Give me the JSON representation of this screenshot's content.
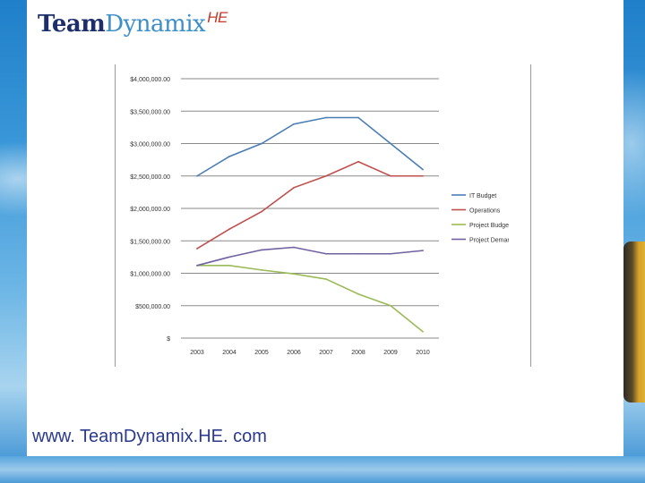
{
  "logo": {
    "part1": "Team",
    "part2": "Dynamix",
    "part3": "HE"
  },
  "footer": {
    "url": "www. TeamDynamix.HE. com"
  },
  "colors": {
    "it_budget": "#4a7eb5",
    "operations": "#c0504d",
    "project_budget": "#9bbb59",
    "project_demand": "#7060a0",
    "grid": "#8a8a8a"
  },
  "chart_data": {
    "type": "line",
    "title": "",
    "xlabel": "",
    "ylabel": "",
    "categories": [
      "2003",
      "2004",
      "2005",
      "2006",
      "2007",
      "2008",
      "2009",
      "2010"
    ],
    "ylim": [
      0,
      4000000
    ],
    "y_ticks": [
      {
        "value": 0,
        "label": "$"
      },
      {
        "value": 500000,
        "label": "$500,000.00"
      },
      {
        "value": 1000000,
        "label": "$1,000,000.00"
      },
      {
        "value": 1500000,
        "label": "$1,500,000.00"
      },
      {
        "value": 2000000,
        "label": "$2,000,000.00"
      },
      {
        "value": 2500000,
        "label": "$2,500,000.00"
      },
      {
        "value": 3000000,
        "label": "$3,000,000.00"
      },
      {
        "value": 3500000,
        "label": "$3,500,000.00"
      },
      {
        "value": 4000000,
        "label": "$4,000,000.00"
      }
    ],
    "grid": true,
    "legend_position": "right",
    "series": [
      {
        "name": "IT Budget",
        "color_key": "it_budget",
        "values": [
          2500000,
          2800000,
          3000000,
          3300000,
          3400000,
          3400000,
          3000000,
          2600000
        ]
      },
      {
        "name": "Operations",
        "color_key": "operations",
        "values": [
          1380000,
          1680000,
          1950000,
          2320000,
          2500000,
          2720000,
          2500000,
          2500000
        ]
      },
      {
        "name": "Project Budget",
        "color_key": "project_budget",
        "values": [
          1120000,
          1120000,
          1050000,
          990000,
          910000,
          680000,
          500000,
          100000
        ]
      },
      {
        "name": "Project Demand",
        "color_key": "project_demand",
        "values": [
          1120000,
          1250000,
          1360000,
          1400000,
          1300000,
          1300000,
          1300000,
          1350000
        ]
      }
    ]
  }
}
